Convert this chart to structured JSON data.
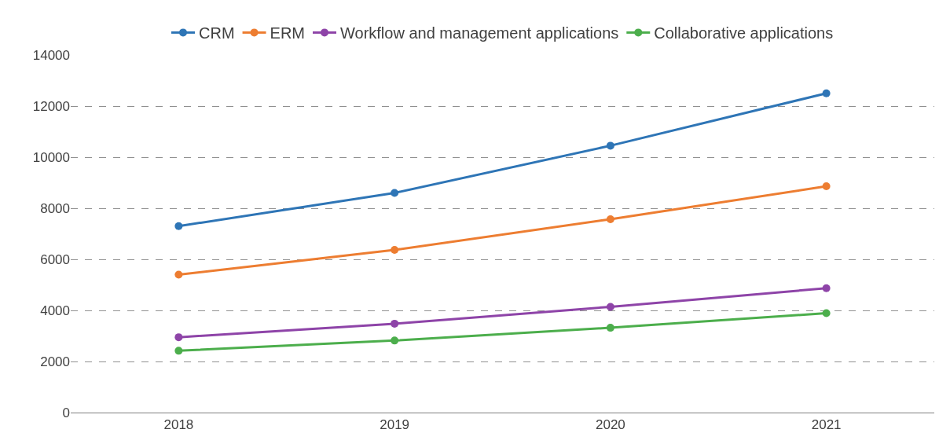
{
  "chart_data": {
    "type": "line",
    "categories": [
      "2018",
      "2019",
      "2020",
      "2021"
    ],
    "series": [
      {
        "name": "CRM",
        "color": "#2e75b6",
        "values": [
          7300,
          8600,
          10450,
          12500
        ]
      },
      {
        "name": "ERM",
        "color": "#ed7d31",
        "values": [
          5400,
          6370,
          7570,
          8860
        ]
      },
      {
        "name": "Workflow and management applications",
        "color": "#8e44a8",
        "values": [
          2950,
          3480,
          4140,
          4870
        ]
      },
      {
        "name": "Collaborative applications",
        "color": "#4cae4c",
        "values": [
          2420,
          2820,
          3320,
          3890
        ]
      }
    ],
    "ylim": [
      0,
      14000
    ],
    "yticks": [
      0,
      2000,
      4000,
      6000,
      8000,
      10000,
      12000,
      14000
    ],
    "grid": "y",
    "legend": "top",
    "marker": "circle",
    "line_style": "solid"
  }
}
